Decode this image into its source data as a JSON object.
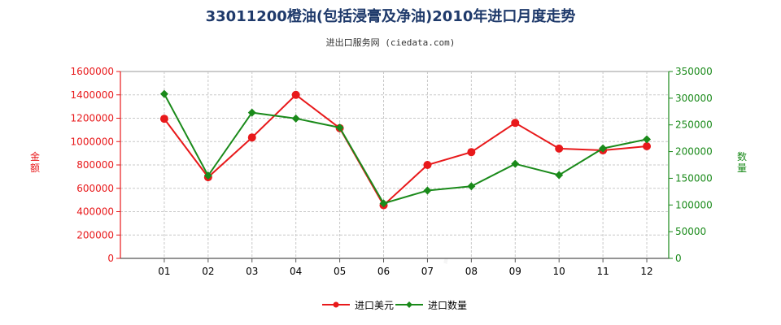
{
  "title": "33011200橙油(包括浸膏及净油)2010年进口月度走势",
  "subtitle": "进出口服务网 (ciedata.com)",
  "watermark_text": "进出口服务网",
  "colors": {
    "value_series": "#e8191b",
    "quantity_series": "#1a8a1a",
    "left_axis": "#e8191b",
    "right_axis": "#1a8a1a",
    "grid": "#c8c8c8"
  },
  "chart_data": {
    "type": "line",
    "x": [
      "01",
      "02",
      "03",
      "04",
      "05",
      "06",
      "07",
      "08",
      "09",
      "10",
      "11",
      "12"
    ],
    "ylabel": "金额",
    "y2label": "数量",
    "ylim": [
      0,
      1600000
    ],
    "y2lim": [
      0,
      350000
    ],
    "yticks": [
      "0",
      "200000",
      "400000",
      "600000",
      "800000",
      "1000000",
      "1200000",
      "1400000",
      "1600000"
    ],
    "y2ticks": [
      "0",
      "50000",
      "100000",
      "150000",
      "200000",
      "250000",
      "300000",
      "350000"
    ],
    "grid": true,
    "legend_position": "bottom",
    "series": [
      {
        "name": "进口美元",
        "axis": "left",
        "values": [
          1195000,
          695000,
          1035000,
          1400000,
          1115000,
          455000,
          800000,
          910000,
          1160000,
          940000,
          925000,
          960000
        ]
      },
      {
        "name": "进口数量",
        "axis": "right",
        "values": [
          308000,
          155000,
          273000,
          262000,
          245000,
          103000,
          127000,
          135000,
          177000,
          156000,
          206000,
          223000
        ]
      }
    ]
  }
}
